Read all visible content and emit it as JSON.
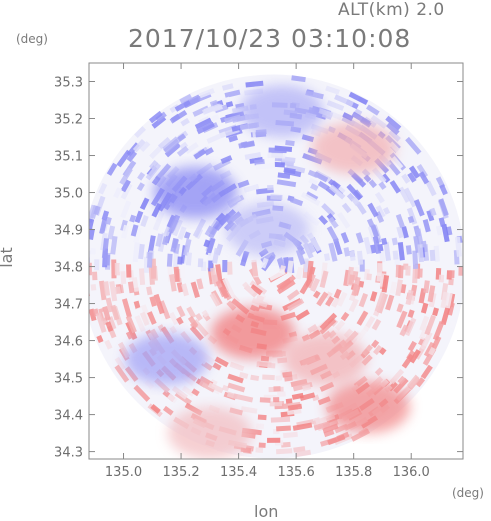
{
  "header": {
    "altitude_label": "ALT(km) 2.0",
    "timestamp": "2017/10/23 03:10:08"
  },
  "chart_data": {
    "type": "heatmap",
    "title": "2017/10/23 03:10:08",
    "subtitle": "ALT(km) 2.0",
    "xlabel": "lon",
    "ylabel": "lat",
    "x_unit": "(deg)",
    "y_unit": "(deg)",
    "xlim": [
      134.88,
      136.18
    ],
    "ylim": [
      34.28,
      35.35
    ],
    "x_ticks": [
      135.0,
      135.2,
      135.4,
      135.6,
      135.8,
      136.0
    ],
    "x_tick_labels": [
      "135.0",
      "135.2",
      "135.4",
      "135.6",
      "135.8",
      "136.0"
    ],
    "y_ticks": [
      34.3,
      34.4,
      34.5,
      34.6,
      34.7,
      34.8,
      34.9,
      35.0,
      35.1,
      35.2,
      35.3
    ],
    "y_tick_labels": [
      "34.3",
      "34.4",
      "34.5",
      "34.6",
      "34.7",
      "34.8",
      "34.9",
      "35.0",
      "35.1",
      "35.2",
      "35.3"
    ],
    "radar_center": {
      "lon": 135.52,
      "lat": 34.8
    },
    "colors": {
      "approaching": "#6f6ff2",
      "receding": "#f26f6f",
      "near_zero": "#f4f4fb",
      "axis": "#888888"
    },
    "regions": [
      {
        "lon": 135.55,
        "lat": 35.22,
        "value": -0.5
      },
      {
        "lon": 135.8,
        "lat": 35.12,
        "value": 0.5
      },
      {
        "lon": 135.25,
        "lat": 35.0,
        "value": -0.8
      },
      {
        "lon": 135.5,
        "lat": 34.9,
        "value": -0.4
      },
      {
        "lon": 135.45,
        "lat": 34.62,
        "value": 0.9
      },
      {
        "lon": 135.7,
        "lat": 34.55,
        "value": 0.5
      },
      {
        "lon": 135.85,
        "lat": 34.42,
        "value": 0.8
      },
      {
        "lon": 135.15,
        "lat": 34.55,
        "value": -0.6
      },
      {
        "lon": 135.3,
        "lat": 34.35,
        "value": 0.4
      }
    ]
  }
}
